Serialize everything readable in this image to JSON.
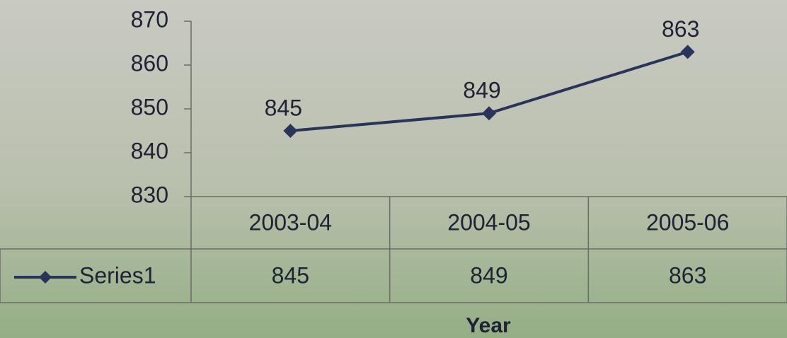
{
  "chart_data": {
    "type": "line",
    "categories": [
      "2003-04",
      "2004-05",
      "2005-06"
    ],
    "series": [
      {
        "name": "Series1",
        "color": "#2a3358",
        "values": [
          845,
          849,
          863
        ]
      }
    ],
    "ylim": [
      830,
      870
    ],
    "yticks": [
      830,
      840,
      850,
      860,
      870
    ],
    "xlabel": "Year",
    "grid": false,
    "data_table": true
  }
}
